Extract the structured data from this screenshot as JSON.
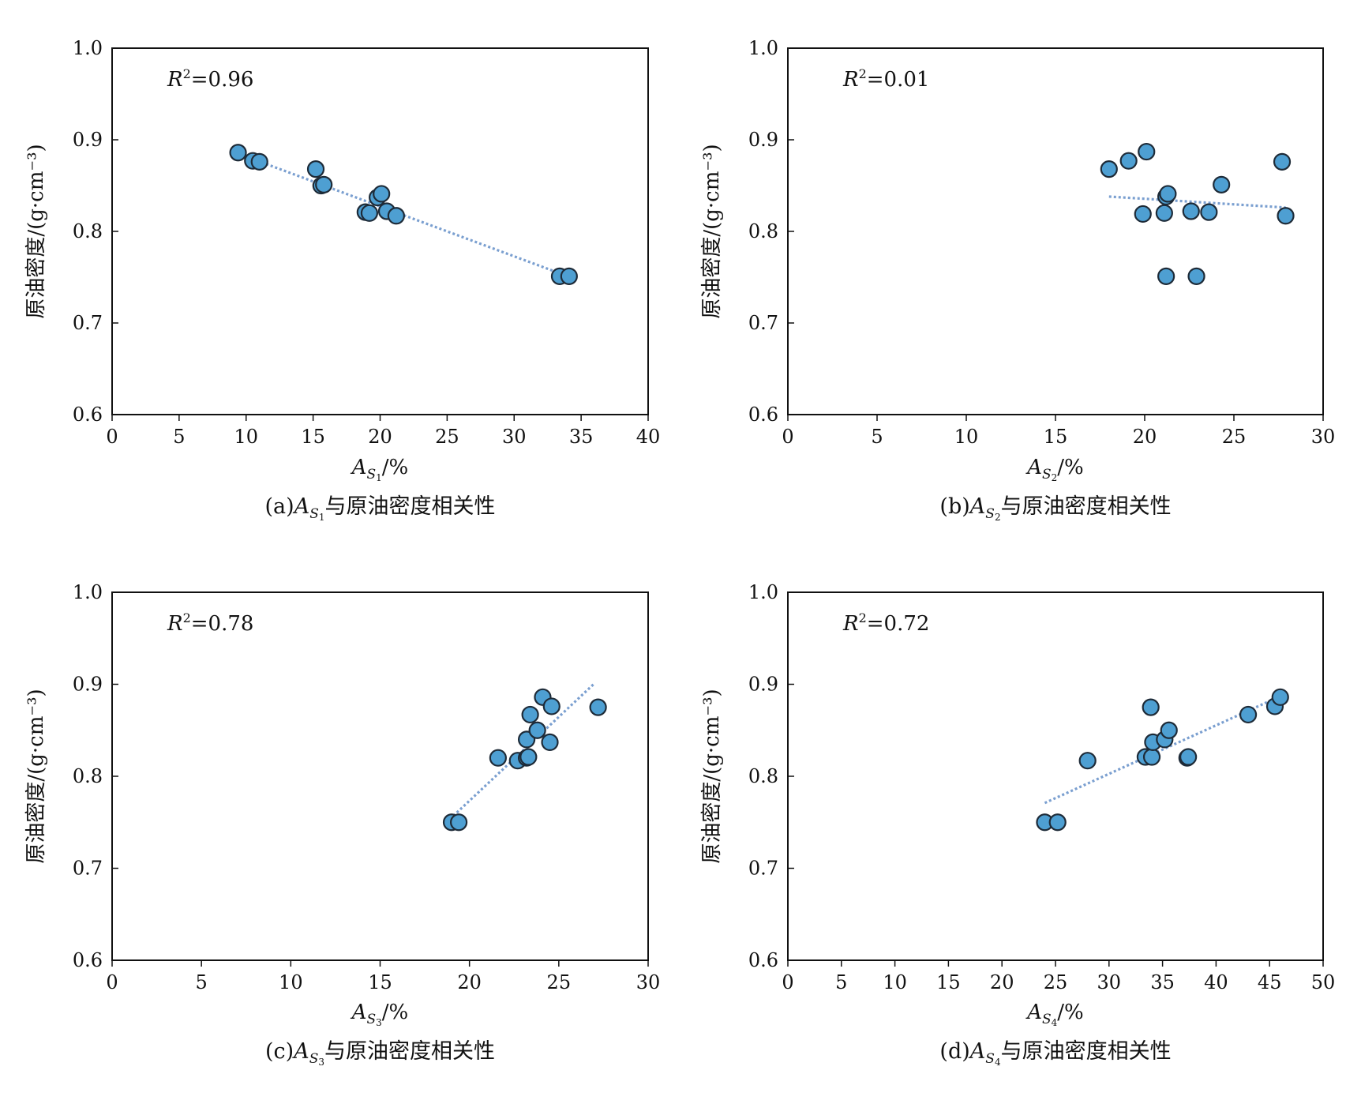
{
  "chart_data": [
    {
      "id": "a",
      "type": "scatter",
      "title": "",
      "caption": {
        "prefix": "(a)",
        "var": "A",
        "sub": "S",
        "subsub": "1",
        "suffix": "与原油密度相关性"
      },
      "xlabel": {
        "var": "A",
        "sub": "S",
        "subsub": "1",
        "unit": "/%"
      },
      "ylabel": "原油密度/(g·cm⁻³)",
      "xlim": [
        0,
        40
      ],
      "ylim": [
        0.6,
        1.0
      ],
      "xticks": [
        0,
        5,
        10,
        15,
        20,
        25,
        30,
        35,
        40
      ],
      "yticks": [
        0.6,
        0.7,
        0.8,
        0.9,
        1.0
      ],
      "r2": {
        "var": "R",
        "sup": "2",
        "text": "=0.96"
      },
      "trendline": {
        "x": [
          10.5,
          34.0
        ],
        "y": [
          0.879,
          0.751
        ]
      },
      "points": [
        {
          "x": 9.4,
          "y": 0.886
        },
        {
          "x": 10.5,
          "y": 0.877
        },
        {
          "x": 11.0,
          "y": 0.876
        },
        {
          "x": 15.2,
          "y": 0.868
        },
        {
          "x": 15.6,
          "y": 0.85
        },
        {
          "x": 15.8,
          "y": 0.851
        },
        {
          "x": 18.9,
          "y": 0.821
        },
        {
          "x": 19.2,
          "y": 0.82
        },
        {
          "x": 19.8,
          "y": 0.837
        },
        {
          "x": 20.1,
          "y": 0.841
        },
        {
          "x": 20.5,
          "y": 0.822
        },
        {
          "x": 21.2,
          "y": 0.817
        },
        {
          "x": 33.4,
          "y": 0.751
        },
        {
          "x": 34.1,
          "y": 0.751
        }
      ]
    },
    {
      "id": "b",
      "type": "scatter",
      "title": "",
      "caption": {
        "prefix": "(b)",
        "var": "A",
        "sub": "S",
        "subsub": "2",
        "suffix": "与原油密度相关性"
      },
      "xlabel": {
        "var": "A",
        "sub": "S",
        "subsub": "2",
        "unit": "/%"
      },
      "ylabel": "原油密度/(g·cm⁻³)",
      "xlim": [
        0,
        30
      ],
      "ylim": [
        0.6,
        1.0
      ],
      "xticks": [
        0,
        5,
        10,
        15,
        20,
        25,
        30
      ],
      "yticks": [
        0.6,
        0.7,
        0.8,
        0.9,
        1.0
      ],
      "r2": {
        "var": "R",
        "sup": "2",
        "text": "=0.01"
      },
      "trendline": {
        "x": [
          18.0,
          27.9
        ],
        "y": [
          0.838,
          0.826
        ]
      },
      "points": [
        {
          "x": 18.0,
          "y": 0.868
        },
        {
          "x": 19.1,
          "y": 0.877
        },
        {
          "x": 19.9,
          "y": 0.819
        },
        {
          "x": 20.1,
          "y": 0.887
        },
        {
          "x": 21.1,
          "y": 0.82
        },
        {
          "x": 21.2,
          "y": 0.838
        },
        {
          "x": 21.3,
          "y": 0.841
        },
        {
          "x": 21.2,
          "y": 0.751
        },
        {
          "x": 22.6,
          "y": 0.822
        },
        {
          "x": 22.9,
          "y": 0.751
        },
        {
          "x": 23.6,
          "y": 0.821
        },
        {
          "x": 24.3,
          "y": 0.851
        },
        {
          "x": 27.7,
          "y": 0.876
        },
        {
          "x": 27.9,
          "y": 0.817
        }
      ]
    },
    {
      "id": "c",
      "type": "scatter",
      "title": "",
      "caption": {
        "prefix": "(c)",
        "var": "A",
        "sub": "S",
        "subsub": "3",
        "suffix": "与原油密度相关性"
      },
      "xlabel": {
        "var": "A",
        "sub": "S",
        "subsub": "3",
        "unit": "/%"
      },
      "ylabel": "原油密度/(g·cm⁻³)",
      "xlim": [
        0,
        30
      ],
      "ylim": [
        0.6,
        1.0
      ],
      "xticks": [
        0,
        5,
        10,
        15,
        20,
        25,
        30
      ],
      "yticks": [
        0.6,
        0.7,
        0.8,
        0.9,
        1.0
      ],
      "r2": {
        "var": "R",
        "sup": "2",
        "text": "=0.78"
      },
      "trendline": {
        "x": [
          19.1,
          27.0
        ],
        "y": [
          0.757,
          0.901
        ]
      },
      "points": [
        {
          "x": 19.0,
          "y": 0.75
        },
        {
          "x": 19.4,
          "y": 0.75
        },
        {
          "x": 21.6,
          "y": 0.82
        },
        {
          "x": 22.7,
          "y": 0.817
        },
        {
          "x": 23.2,
          "y": 0.84
        },
        {
          "x": 23.2,
          "y": 0.82
        },
        {
          "x": 23.3,
          "y": 0.821
        },
        {
          "x": 23.4,
          "y": 0.867
        },
        {
          "x": 23.8,
          "y": 0.85
        },
        {
          "x": 24.1,
          "y": 0.886
        },
        {
          "x": 24.5,
          "y": 0.837
        },
        {
          "x": 24.6,
          "y": 0.876
        },
        {
          "x": 27.2,
          "y": 0.875
        }
      ]
    },
    {
      "id": "d",
      "type": "scatter",
      "title": "",
      "caption": {
        "prefix": "(d)",
        "var": "A",
        "sub": "S",
        "subsub": "4",
        "suffix": "与原油密度相关性"
      },
      "xlabel": {
        "var": "A",
        "sub": "S",
        "subsub": "4",
        "unit": "/%"
      },
      "ylabel": "原油密度/(g·cm⁻³)",
      "xlim": [
        0,
        50
      ],
      "ylim": [
        0.6,
        1.0
      ],
      "xticks": [
        0,
        5,
        10,
        15,
        20,
        25,
        30,
        35,
        40,
        45,
        50
      ],
      "yticks": [
        0.6,
        0.7,
        0.8,
        0.9,
        1.0
      ],
      "r2": {
        "var": "R",
        "sup": "2",
        "text": "=0.72"
      },
      "trendline": {
        "x": [
          24.0,
          46.0
        ],
        "y": [
          0.771,
          0.887
        ]
      },
      "points": [
        {
          "x": 24.0,
          "y": 0.75
        },
        {
          "x": 25.2,
          "y": 0.75
        },
        {
          "x": 28.0,
          "y": 0.817
        },
        {
          "x": 33.4,
          "y": 0.821
        },
        {
          "x": 33.9,
          "y": 0.875
        },
        {
          "x": 34.0,
          "y": 0.821
        },
        {
          "x": 34.1,
          "y": 0.837
        },
        {
          "x": 35.2,
          "y": 0.84
        },
        {
          "x": 35.6,
          "y": 0.85
        },
        {
          "x": 37.3,
          "y": 0.82
        },
        {
          "x": 37.4,
          "y": 0.821
        },
        {
          "x": 43.0,
          "y": 0.867
        },
        {
          "x": 45.5,
          "y": 0.876
        },
        {
          "x": 46.0,
          "y": 0.886
        }
      ]
    }
  ],
  "colors": {
    "point_fill": "#4e9fd2",
    "point_stroke": "#1e2b38",
    "trend": "#7a9fd0",
    "axis": "#111111"
  }
}
